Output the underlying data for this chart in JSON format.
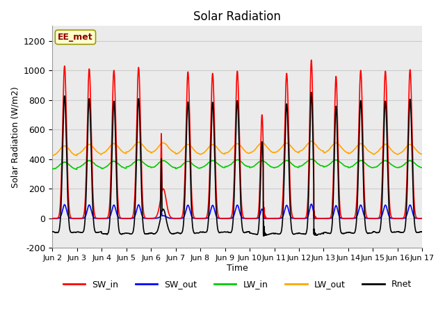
{
  "title": "Solar Radiation",
  "ylabel": "Solar Radiation (W/m2)",
  "xlabel": "Time",
  "ylim": [
    -200,
    1300
  ],
  "yticks": [
    -200,
    0,
    200,
    400,
    600,
    800,
    1000,
    1200
  ],
  "annotation_text": "EE_met",
  "annotation_color": "#8B0000",
  "annotation_bg": "#FFFFCC",
  "num_days": 15,
  "points_per_day": 288,
  "colors": {
    "SW_in": "#FF0000",
    "SW_out": "#0000FF",
    "LW_in": "#00CC00",
    "LW_out": "#FFA500",
    "Rnet": "#000000"
  },
  "linewidths": {
    "SW_in": 1.2,
    "SW_out": 1.2,
    "LW_in": 1.2,
    "LW_out": 1.2,
    "Rnet": 1.2
  },
  "x_tick_labels": [
    "Jun 2",
    "Jun 3",
    "Jun 4",
    "Jun 5",
    "Jun 6",
    "Jun 7",
    "Jun 8",
    "Jun 9",
    "Jun 10",
    "Jun 11",
    "Jun 12",
    "Jun 13",
    "Jun 14",
    "Jun 15",
    "Jun 16",
    "Jun 17"
  ],
  "grid_color": "#CCCCCC",
  "plot_bg_color": "#EBEBEB",
  "day_peaks": [
    1030,
    1010,
    1000,
    1020,
    575,
    990,
    980,
    995,
    700,
    980,
    1070,
    960,
    1000,
    995,
    1005
  ],
  "lw_in_bases": [
    330,
    340,
    335,
    345,
    340,
    335,
    340,
    345,
    340,
    340,
    350,
    345,
    340,
    340,
    340
  ],
  "lw_out_bases": [
    420,
    430,
    435,
    445,
    440,
    430,
    430,
    435,
    440,
    440,
    450,
    440,
    435,
    430,
    430
  ]
}
